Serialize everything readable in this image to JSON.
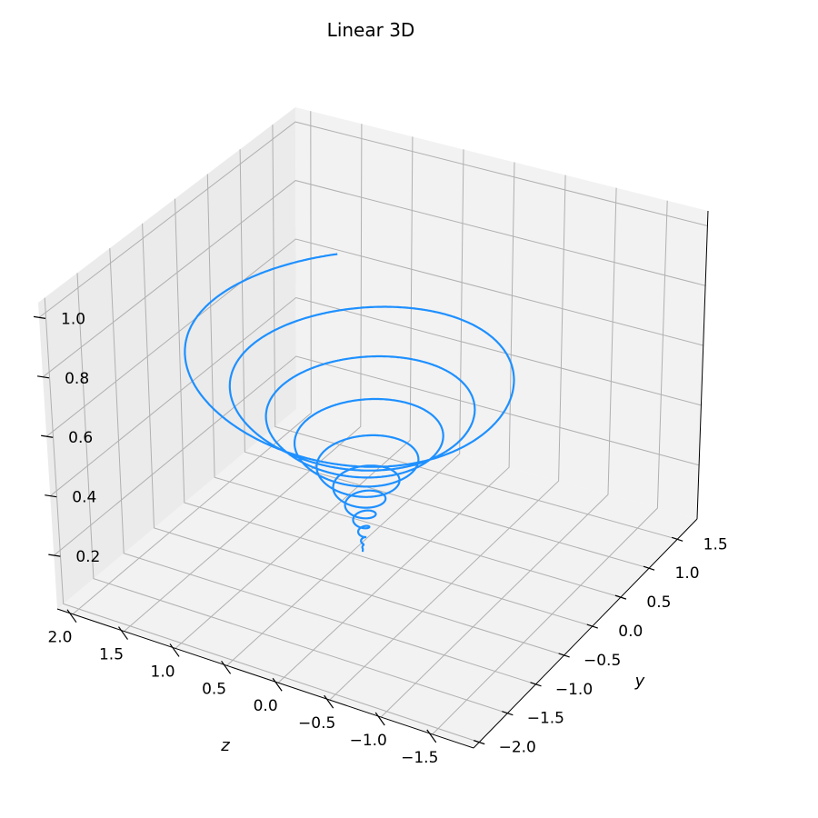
{
  "chart_data": {
    "type": "line",
    "title": "Linear 3D",
    "projection": "3d",
    "xlabel": "z",
    "ylabel": "y",
    "zlabel": "",
    "xlim": [
      -1.9,
      2.15
    ],
    "ylim": [
      -2.1,
      1.85
    ],
    "zlim": [
      0.02,
      1.05
    ],
    "x_ticks": [
      -1.5,
      -1.0,
      -0.5,
      0.0,
      0.5,
      1.0,
      1.5,
      2.0
    ],
    "x_tick_labels": [
      "−1.5",
      "−1.0",
      "−0.5",
      "0.0",
      "0.5",
      "1.0",
      "1.5",
      "2.0"
    ],
    "y_ticks": [
      -2.0,
      -1.5,
      -1.0,
      -0.5,
      0.0,
      0.5,
      1.0,
      1.5
    ],
    "y_tick_labels": [
      "−2.0",
      "−1.5",
      "−1.0",
      "−0.5",
      "0.0",
      "0.5",
      "1.0",
      "1.5"
    ],
    "z_ticks": [
      0.2,
      0.4,
      0.6,
      0.8,
      1.0
    ],
    "z_tick_labels": [
      "0.2",
      "0.4",
      "0.6",
      "0.8",
      "1.0"
    ],
    "grid": true,
    "series": [
      {
        "color": "#1e90ff",
        "curve": "damped spiral: x = r·cos(θ), y = r·sin(θ), z = t",
        "t_range": [
          0.05,
          0.75
        ],
        "r_max": 1.55,
        "turns": 12
      }
    ]
  }
}
